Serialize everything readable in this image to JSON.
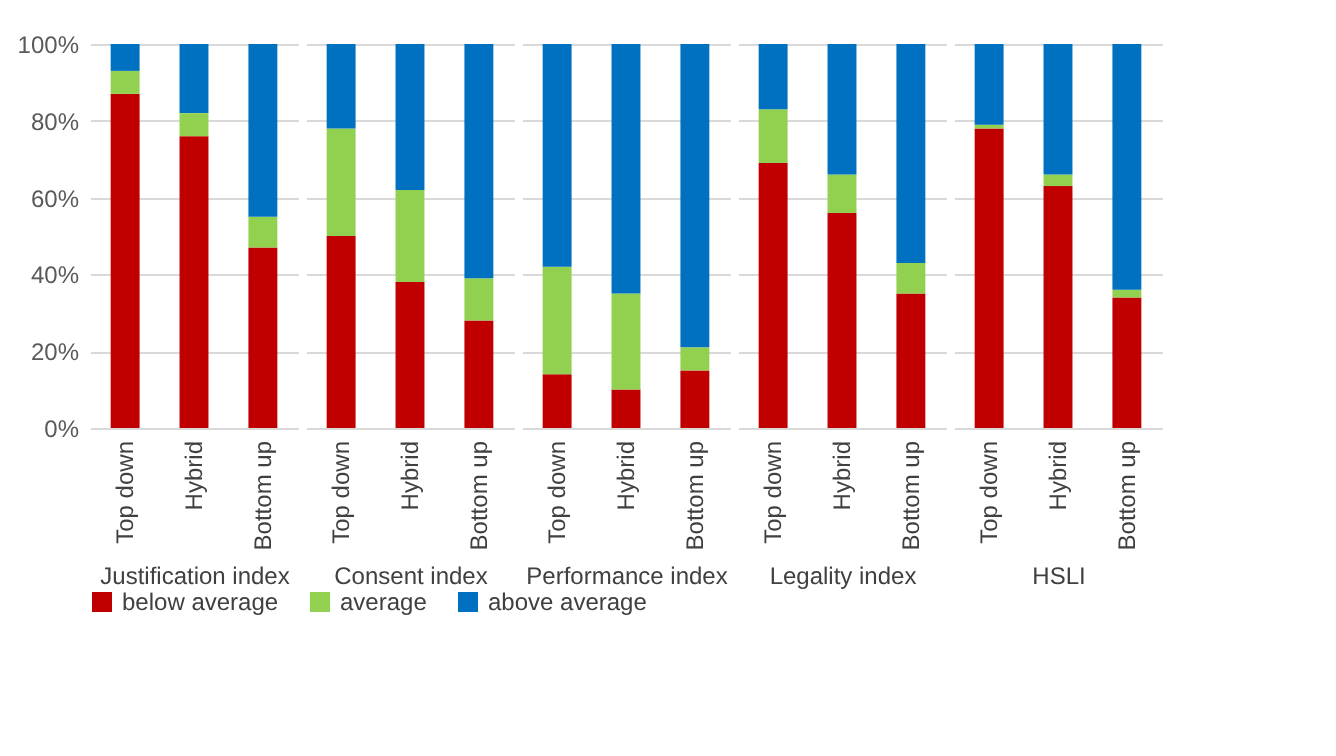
{
  "chart_data": [
    {
      "type": "bar",
      "stacked": true,
      "xlabel": "Justification index",
      "categories": [
        "Top down",
        "Hybrid",
        "Bottom up"
      ],
      "ylim": [
        0,
        100
      ],
      "yticks": [
        {
          "value": 0,
          "label": "0%"
        },
        {
          "value": 20,
          "label": "20%"
        },
        {
          "value": 40,
          "label": "40%"
        },
        {
          "value": 60,
          "label": "60%"
        },
        {
          "value": 80,
          "label": "80%"
        },
        {
          "value": 100,
          "label": "100%"
        }
      ],
      "grid": "y",
      "legend": "bottom",
      "series": [
        {
          "name": "below average",
          "color": "#c00000",
          "values": [
            87,
            76,
            47
          ]
        },
        {
          "name": "average",
          "color": "#92d050",
          "values": [
            6,
            6,
            8
          ]
        },
        {
          "name": "above average",
          "color": "#0070c0",
          "values": [
            7,
            18,
            45
          ]
        }
      ]
    },
    {
      "type": "bar",
      "stacked": true,
      "xlabel": "Consent index",
      "categories": [
        "Top down",
        "Hybrid",
        "Bottom up"
      ],
      "ylim": [
        0,
        100
      ],
      "yticks": [
        0,
        20,
        40,
        60,
        80,
        100
      ],
      "grid": "y",
      "tick_labels": "x",
      "series": [
        {
          "color": "#c00000",
          "values": [
            50,
            38,
            28
          ]
        },
        {
          "color": "#92d050",
          "values": [
            28,
            24,
            11
          ]
        },
        {
          "color": "#0070c0",
          "values": [
            22,
            38,
            61
          ]
        }
      ]
    },
    {
      "type": "bar",
      "stacked": true,
      "xlabel": "Performance index",
      "categories": [
        "Top down",
        "Hybrid",
        "Bottom up"
      ],
      "ylim": [
        0,
        100
      ],
      "yticks": [
        0,
        20,
        40,
        60,
        80,
        100
      ],
      "grid": "y",
      "tick_labels": "x",
      "series": [
        {
          "color": "#c00000",
          "values": [
            14,
            10,
            15
          ]
        },
        {
          "color": "#92d050",
          "values": [
            28,
            25,
            6
          ]
        },
        {
          "color": "#0070c0",
          "values": [
            58,
            65,
            79
          ]
        }
      ]
    },
    {
      "type": "bar",
      "stacked": true,
      "xlabel": "Legality index",
      "categories": [
        "Top down",
        "Hybrid",
        "Bottom up"
      ],
      "ylim": [
        0,
        100
      ],
      "yticks": [
        0,
        20,
        40,
        60,
        80,
        100
      ],
      "grid": "y",
      "tick_labels": "x",
      "series": [
        {
          "color": "#c00000",
          "values": [
            69,
            56,
            35
          ]
        },
        {
          "color": "#92d050",
          "values": [
            14,
            10,
            8
          ]
        },
        {
          "color": "#0070c0",
          "values": [
            17,
            34,
            57
          ]
        }
      ]
    },
    {
      "type": "bar",
      "stacked": true,
      "xlabel": "HSLI",
      "categories": [
        "Top down",
        "Hybrid",
        "Bottom up"
      ],
      "ylim": [
        0,
        100
      ],
      "yticks": [
        0,
        20,
        40,
        60,
        80,
        100
      ],
      "grid": "y",
      "tick_labels": "x",
      "series": [
        {
          "color": "#c00000",
          "values": [
            78,
            63,
            34
          ]
        },
        {
          "color": "#92d050",
          "values": [
            1,
            3,
            2
          ]
        },
        {
          "color": "#0070c0",
          "values": [
            21,
            34,
            64
          ]
        }
      ]
    }
  ]
}
